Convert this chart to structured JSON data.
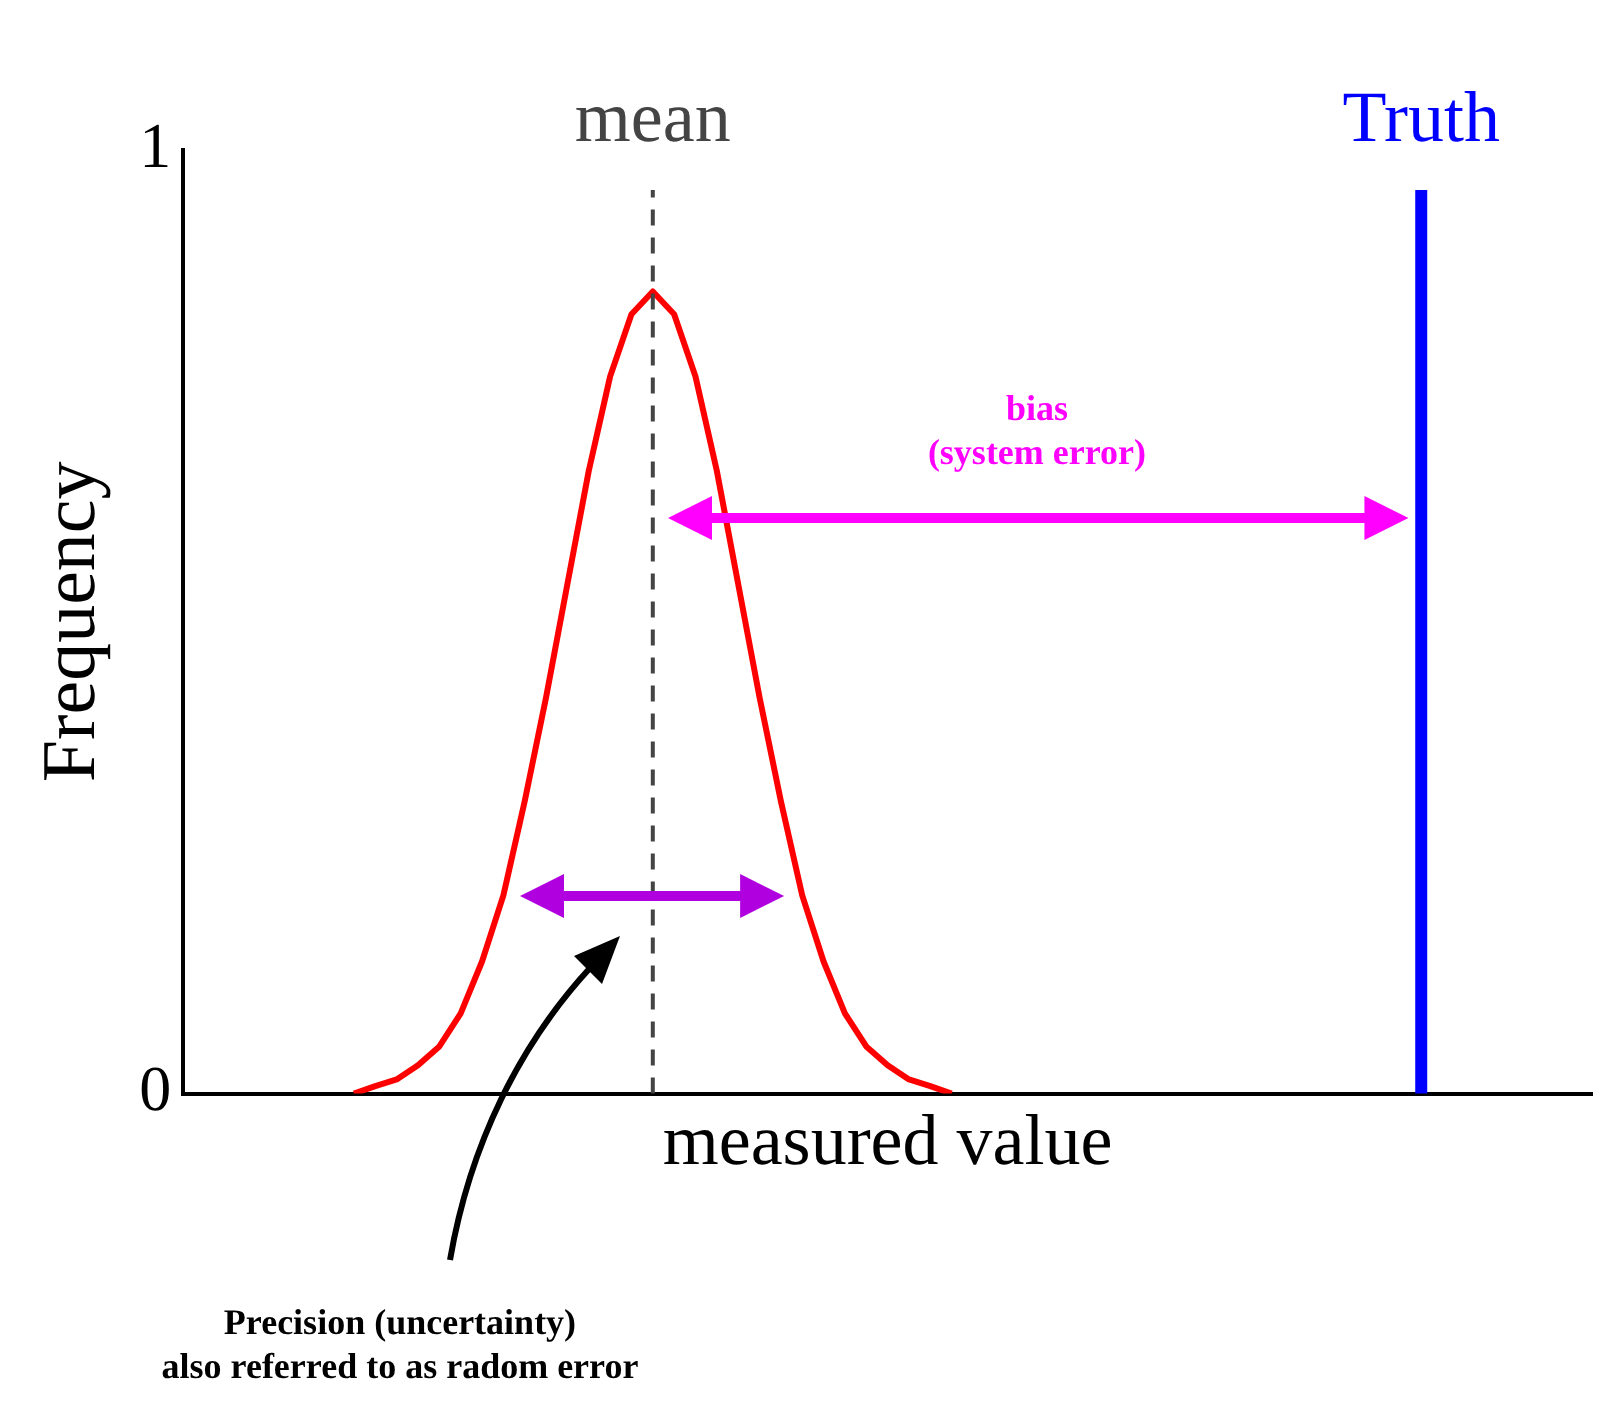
{
  "chart_data": {
    "type": "line",
    "xlabel": "measured value",
    "ylabel": "Frequency",
    "categories": [
      null,
      null,
      null,
      null,
      null,
      null,
      null,
      null,
      null,
      null,
      null,
      null,
      null,
      null,
      null,
      null,
      null,
      null,
      null,
      null,
      null,
      null,
      null,
      null,
      null,
      null,
      null,
      null,
      null,
      null,
      null,
      null,
      null,
      null,
      null,
      null,
      null,
      null,
      null,
      null,
      null,
      null,
      null,
      null,
      null,
      null,
      null,
      null,
      null,
      null,
      null,
      null,
      null,
      null,
      null,
      null,
      null,
      null,
      null,
      null,
      null,
      null,
      null,
      null,
      null,
      null,
      null
    ],
    "series": [
      {
        "color": "#ff0000",
        "values": [
          null,
          null,
          null,
          null,
          null,
          null,
          null,
          null,
          0,
          0.008,
          0.015,
          0.03,
          0.05,
          0.085,
          0.14,
          0.21,
          0.31,
          0.42,
          0.54,
          0.66,
          0.76,
          0.826,
          0.85,
          0.826,
          0.76,
          0.66,
          0.54,
          0.42,
          0.31,
          0.21,
          0.14,
          0.085,
          0.05,
          0.03,
          0.015,
          0.008,
          0,
          null,
          null,
          null,
          null,
          null,
          null,
          null,
          null,
          null,
          null,
          null,
          null,
          null,
          null,
          null,
          null,
          null,
          null,
          null,
          null,
          null,
          null,
          null,
          null,
          null,
          null,
          null,
          null,
          null,
          null
        ]
      }
    ],
    "ylim": [
      0,
      1
    ],
    "yticks": [
      0,
      1
    ],
    "tick_labels": "y",
    "grid": false,
    "legend": false,
    "marker": "none",
    "line_style": "solid",
    "annotations": [
      "bias\n(system error)",
      "Precision (uncertainty)\nalso referred to as radom error",
      "mean",
      "Truth"
    ]
  }
}
